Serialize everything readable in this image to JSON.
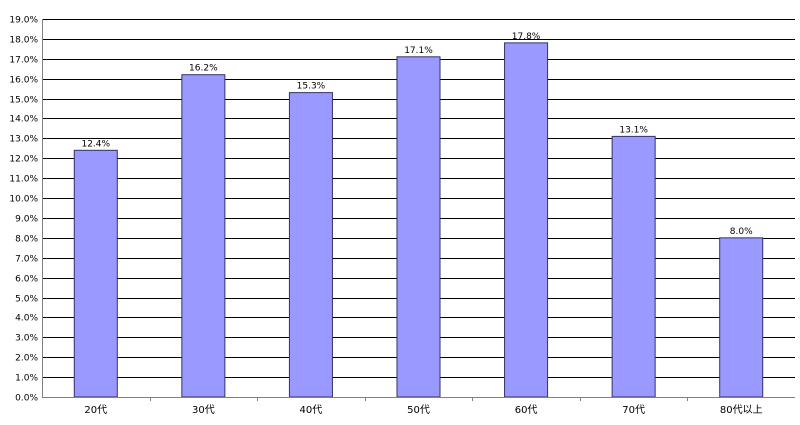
{
  "chart_data": {
    "type": "bar",
    "categories": [
      "20代",
      "30代",
      "40代",
      "50代",
      "60代",
      "70代",
      "80代以上"
    ],
    "values": [
      12.4,
      16.2,
      15.3,
      17.1,
      17.8,
      13.1,
      8.0
    ],
    "data_labels": [
      "12.4%",
      "16.2%",
      "15.3%",
      "17.1%",
      "17.8%",
      "13.1%",
      "8.0%"
    ],
    "ylim": [
      0,
      19
    ],
    "yticks": [
      "0.0%",
      "1.0%",
      "2.0%",
      "3.0%",
      "4.0%",
      "5.0%",
      "6.0%",
      "7.0%",
      "8.0%",
      "9.0%",
      "10.0%",
      "11.0%",
      "12.0%",
      "13.0%",
      "14.0%",
      "15.0%",
      "16.0%",
      "17.0%",
      "18.0%",
      "19.0%"
    ],
    "grid": true,
    "legend": "none",
    "title": "",
    "xlabel": "",
    "ylabel": "",
    "colors": {
      "bar_fill": "#9999ff",
      "bar_stroke": "#333366",
      "grid": "#000000",
      "axis": "#808080"
    }
  }
}
